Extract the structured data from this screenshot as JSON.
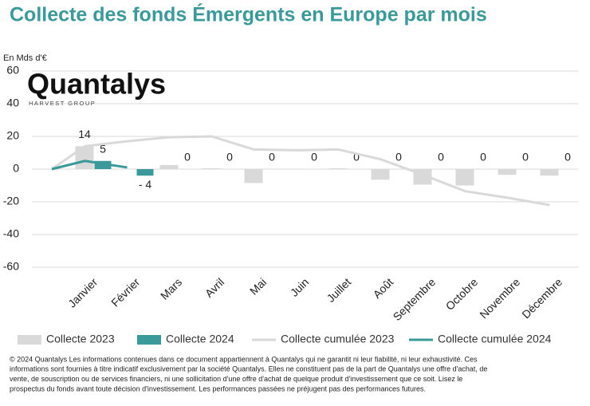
{
  "chart_data": {
    "type": "bar",
    "title": "Collecte des fonds Émergents en Europe par mois",
    "y_axis_label": "En Mds d'€",
    "logo": {
      "name": "Quantalys",
      "tagline": "HARVEST GROUP"
    },
    "categories": [
      null,
      "Janvier",
      "Février",
      "Mars",
      "Avril",
      "Mai",
      "Juin",
      "Juillet",
      "Août",
      "Septembre",
      "Octobre",
      "Novembre",
      "Décembre"
    ],
    "series": [
      {
        "name": "Collecte 2023",
        "kind": "bar",
        "color": "#d9d9d9",
        "values": [
          null,
          14,
          0,
          2.5,
          0.5,
          -8.5,
          0,
          0.5,
          -6.5,
          -9.5,
          -10,
          -3.5,
          -4
        ],
        "value_labels": [
          null,
          "14",
          null,
          null,
          null,
          null,
          null,
          null,
          null,
          null,
          null,
          null,
          null
        ]
      },
      {
        "name": "Collecte 2024",
        "kind": "bar",
        "color": "#3a9a9a",
        "values": [
          null,
          5,
          -4,
          0,
          0,
          0,
          0,
          0,
          0,
          0,
          0,
          0,
          0
        ],
        "value_labels": [
          null,
          "5",
          "- 4",
          "0",
          "0",
          "0",
          "0",
          "0",
          "0",
          "0",
          "0",
          "0",
          "0"
        ]
      },
      {
        "name": "Collecte cumulée 2023",
        "kind": "line",
        "color": "#d9d9d9",
        "values": [
          0,
          14,
          17,
          19.5,
          20,
          12,
          11.5,
          12,
          6,
          -3.5,
          -13.5,
          -17.5,
          -22
        ]
      },
      {
        "name": "Collecte cumulée 2024",
        "kind": "line",
        "color": "#3a9a9a",
        "values": [
          0,
          5,
          1,
          null,
          null,
          null,
          null,
          null,
          null,
          null,
          null,
          null,
          null
        ]
      }
    ],
    "ylim": [
      -60,
      60
    ],
    "yticks": [
      -60,
      -40,
      -20,
      0,
      20,
      40,
      60
    ],
    "grid": true,
    "footer": [
      "© 2024 Quantalys Les informations contenues dans ce document appartiennent à Quantalys qui ne garantit ni leur fiabilité, ni leur exhaustivité. Ces",
      "informations sont fournies à titre indicatif exclusivement par la société Quantalys. Elles ne constituent pas de la part de Quantalys une offre d'achat, de",
      "vente, de souscription ou de services financiers, ni une sollicitation d'une offre d'achat de quelque produit d'investissement que ce soit. Lisez le",
      "prospectus du fonds avant toute décision d'investissement. Les performances passées ne préjugent pas des performances futures."
    ]
  }
}
